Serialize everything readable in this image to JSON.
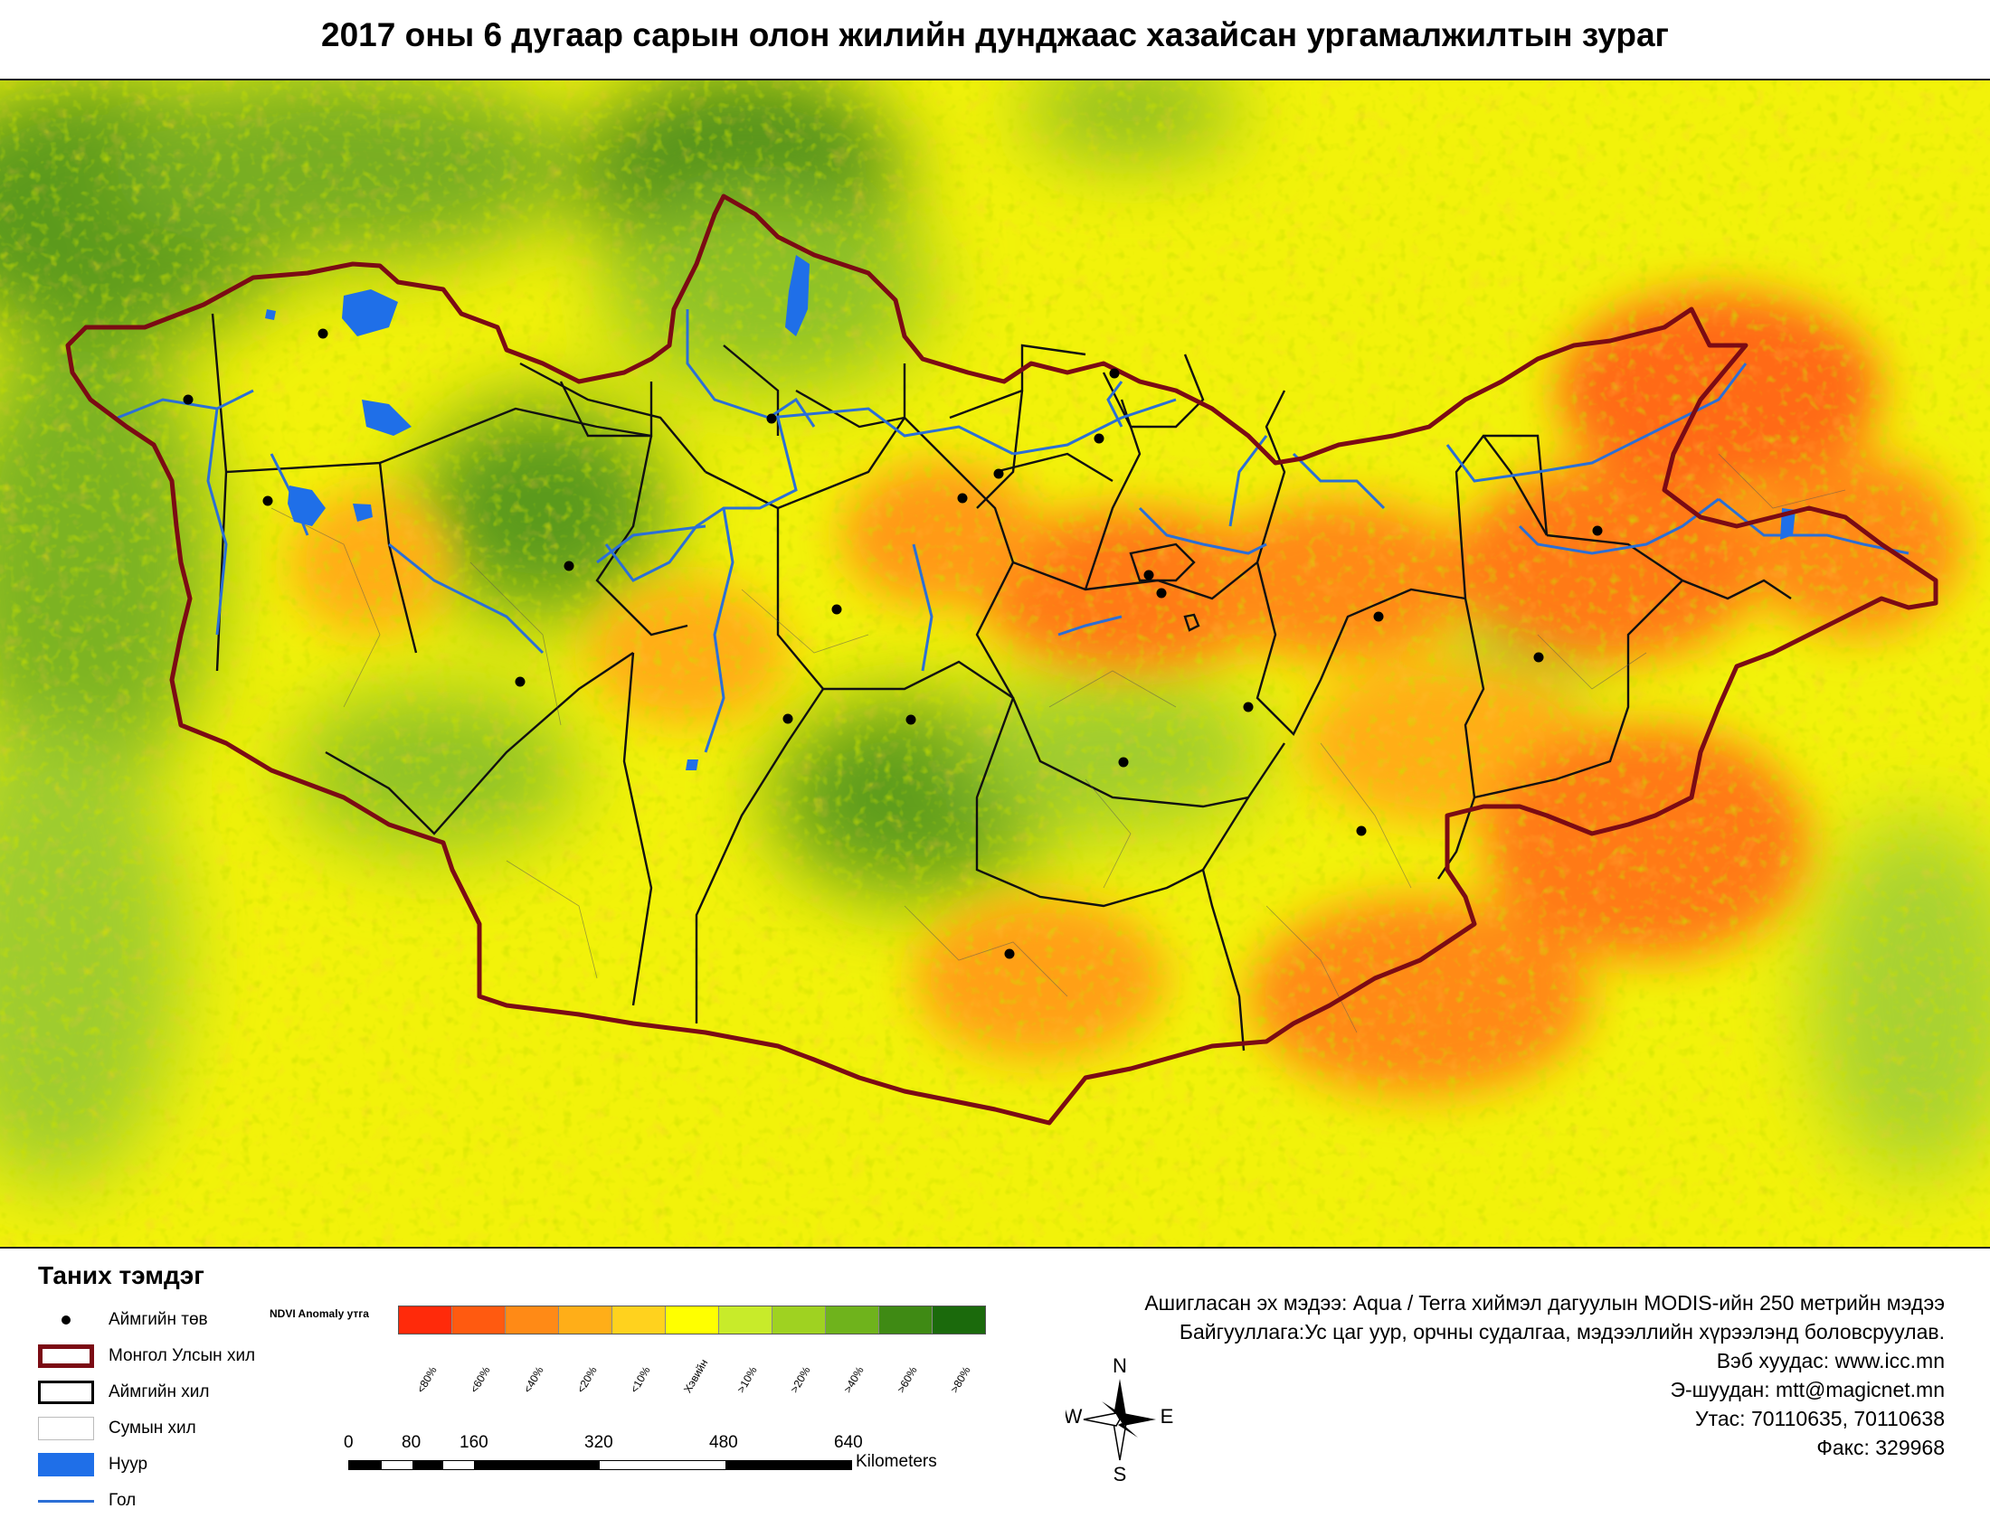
{
  "title": "2017 оны 6 дугаар сарын олон жилийн дунджаас хазайсан ургамалжилтын зураг",
  "legend": {
    "heading": "Таних тэмдэг",
    "items": [
      {
        "label": "Аймгийн төв"
      },
      {
        "label": "Монгол Улсын хил"
      },
      {
        "label": "Аймгийн хил"
      },
      {
        "label": "Сумын хил"
      },
      {
        "label": "Нуур"
      },
      {
        "label": "Гол"
      }
    ],
    "colors": {
      "border": "#7b0b14",
      "aimag": "#000000",
      "lake": "#1f6fe8",
      "river": "#2b6fd6"
    }
  },
  "ndvi": {
    "label": "NDVI Anomaly утга",
    "classes": [
      {
        "label": "<80%",
        "color": "#ff2a0a"
      },
      {
        "label": "<60%",
        "color": "#ff5a10"
      },
      {
        "label": "<40%",
        "color": "#ff8a16"
      },
      {
        "label": "<20%",
        "color": "#ffae18"
      },
      {
        "label": "<10%",
        "color": "#ffd21e"
      },
      {
        "label": "Хэвийн",
        "color": "#ffff00"
      },
      {
        "label": ">10%",
        "color": "#c8eb2a"
      },
      {
        "label": ">20%",
        "color": "#9fd221"
      },
      {
        "label": ">40%",
        "color": "#6fb31c"
      },
      {
        "label": ">60%",
        "color": "#3f8a14"
      },
      {
        "label": ">80%",
        "color": "#1b6a0c"
      }
    ]
  },
  "scale": {
    "ticks": [
      "0",
      "80",
      "160",
      "320",
      "480",
      "640"
    ],
    "unit": "Kilometers"
  },
  "info": {
    "source": "Ашигласан эх мэдээ: Aqua / Terra хиймэл дагуулын MODIS-ийн 250 метрийн мэдээ",
    "org": "Байгууллага:Ус цаг уур, орчны судалгаа, мэдээллийн хүрээлэнд боловсруулав.",
    "web": "Вэб хуудас: www.icc.mn",
    "email": "Э-шуудан: mtt@magicnet.mn",
    "phone": "Утас: 70110635, 70110638",
    "fax": "Факс: 329968"
  },
  "compass": {
    "n": "N",
    "s": "S",
    "e": "E",
    "w": "W"
  }
}
